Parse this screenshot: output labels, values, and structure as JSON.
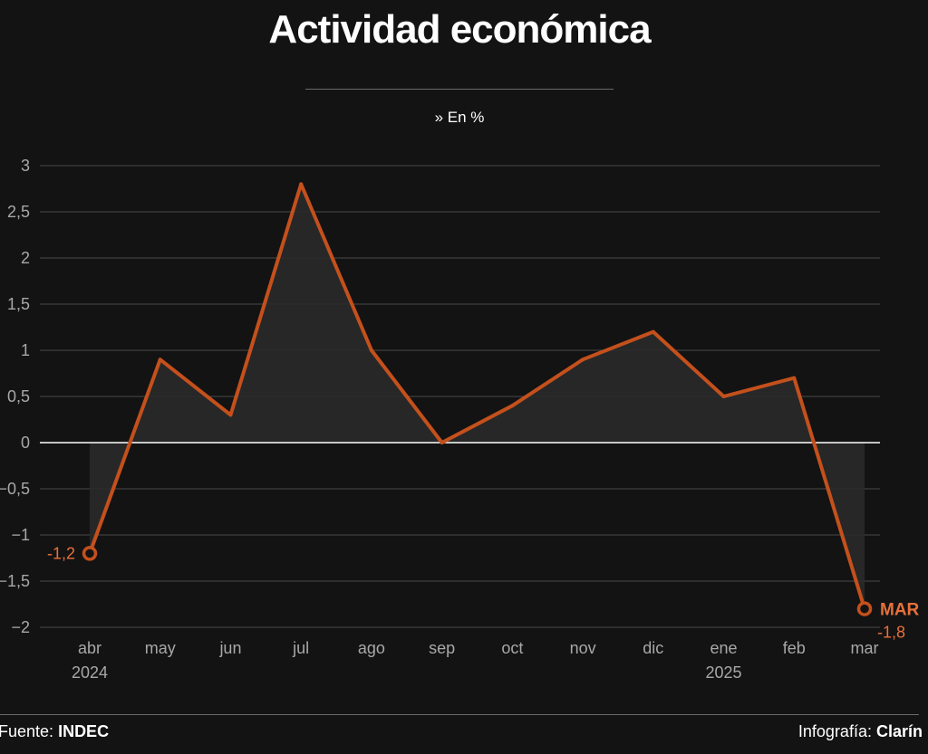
{
  "header": {
    "title": "Actividad económica",
    "subtitle": "» En %"
  },
  "footer": {
    "source_label": "Fuente:",
    "source_value": "INDEC",
    "credit_label": "Infografía:",
    "credit_value": "Clarín"
  },
  "colors": {
    "background": "#131313",
    "line": "#c4501c",
    "label": "#e8703a",
    "area": "#2a2a2a",
    "grid": "#4a4a4a",
    "zero": "#ffffff",
    "tick": "#a8a8a8"
  },
  "chart_data": {
    "type": "line",
    "x": [
      "abr",
      "may",
      "jun",
      "jul",
      "ago",
      "sep",
      "oct",
      "nov",
      "dic",
      "ene",
      "feb",
      "mar"
    ],
    "x_year_labels": {
      "0": "2024",
      "9": "2025"
    },
    "values": [
      -1.2,
      0.9,
      0.3,
      2.8,
      1.0,
      0.0,
      0.4,
      0.9,
      1.2,
      0.5,
      0.7,
      -1.8
    ],
    "ylim": [
      -2,
      3
    ],
    "yticks": [
      "3",
      "2,5",
      "2",
      "1,5",
      "1",
      "0,5",
      "0",
      "−0,5",
      "−1",
      "−1,5",
      "−2"
    ],
    "ytick_values": [
      3,
      2.5,
      2,
      1.5,
      1,
      0.5,
      0,
      -0.5,
      -1,
      -1.5,
      -2
    ],
    "grid": true,
    "annotations": [
      {
        "index": 0,
        "text": "-1,2"
      },
      {
        "index": 11,
        "text": "-1,8",
        "tag": "MAR"
      }
    ]
  }
}
